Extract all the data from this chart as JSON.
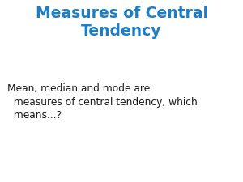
{
  "title_line1": "Measures of Central",
  "title_line2": "Tendency",
  "title_color": "#1A7EC8",
  "body_text": "Mean, median and mode are\n  measures of central tendency, which\n  means...?",
  "body_color": "#1a1a1a",
  "background_color": "#ffffff",
  "title_fontsize": 13.5,
  "body_fontsize": 8.8
}
